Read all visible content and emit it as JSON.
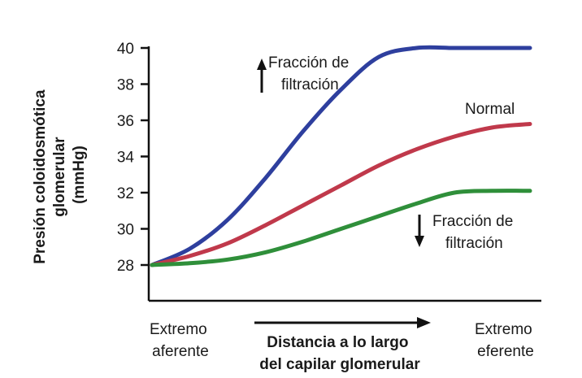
{
  "chart_data": {
    "type": "line",
    "title": "",
    "ylabel": [
      "Presión coloidosmótica",
      "glomerular",
      "(mmHg)"
    ],
    "xlabel": [
      "Distancia a lo largo",
      "del capilar glomerular"
    ],
    "x_start_label": [
      "Extremo",
      "aferente"
    ],
    "x_end_label": [
      "Extremo",
      "eferente"
    ],
    "ylim": [
      27,
      40
    ],
    "yticks": [
      28,
      30,
      32,
      34,
      36,
      38,
      40
    ],
    "xlim": [
      0,
      1
    ],
    "grid": false,
    "series": [
      {
        "color": "#2e3f9e",
        "x": [
          0,
          0.1,
          0.2,
          0.3,
          0.4,
          0.5,
          0.6,
          0.7,
          0.8,
          0.9,
          1.0
        ],
        "values": [
          28.0,
          28.9,
          30.5,
          32.8,
          35.4,
          37.7,
          39.5,
          40.0,
          40.0,
          40.0,
          40.0
        ]
      },
      {
        "color": "#c0394b",
        "x": [
          0,
          0.1,
          0.2,
          0.3,
          0.4,
          0.5,
          0.6,
          0.7,
          0.8,
          0.9,
          1.0
        ],
        "values": [
          28.0,
          28.5,
          29.2,
          30.2,
          31.3,
          32.4,
          33.5,
          34.4,
          35.1,
          35.6,
          35.8
        ]
      },
      {
        "color": "#2f8f3a",
        "x": [
          0,
          0.1,
          0.2,
          0.3,
          0.4,
          0.5,
          0.6,
          0.7,
          0.8,
          0.9,
          1.0
        ],
        "values": [
          28.0,
          28.1,
          28.3,
          28.7,
          29.3,
          30.0,
          30.7,
          31.4,
          32.0,
          32.1,
          32.1
        ]
      }
    ],
    "annotations": [
      {
        "arrow": "up",
        "lines": [
          "Fracción de",
          "filtración"
        ],
        "series_index": 0
      },
      {
        "arrow": "none",
        "lines": [
          "Normal"
        ],
        "series_index": 1
      },
      {
        "arrow": "down",
        "lines": [
          "Fracción de",
          "filtración"
        ],
        "series_index": 2
      }
    ]
  }
}
